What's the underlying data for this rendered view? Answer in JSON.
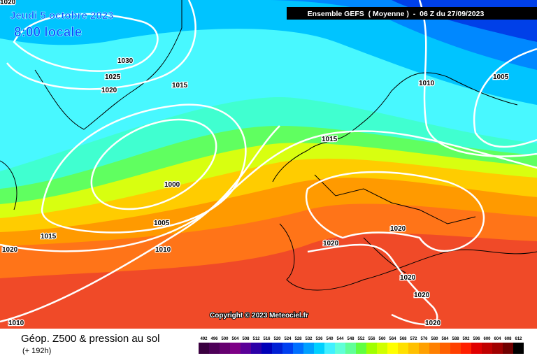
{
  "map": {
    "date": "Jeudi 5 octobre 2023",
    "time": "8:00 locale",
    "header": "Ensemble GEFS  ( Moyenne )  -  06 Z du 27/09/2023",
    "copyright": "Copyright © 2023 Meteociel.fr",
    "isobar_labels": [
      "1020",
      "1030",
      "1025",
      "1020",
      "1015",
      "1010",
      "1005",
      "1015",
      "1000",
      "1005",
      "1015",
      "1020",
      "1010",
      "1020",
      "1020",
      "1020",
      "1020",
      "1020",
      "1010"
    ]
  },
  "legend": {
    "title": "Géop. Z500 & pression au sol",
    "subtitle": "(+ 192h)",
    "scale": [
      492,
      496,
      500,
      504,
      508,
      512,
      516,
      520,
      524,
      528,
      532,
      536,
      540,
      544,
      548,
      552,
      556,
      560,
      564,
      568,
      572,
      576,
      580,
      584,
      588,
      592,
      596,
      600,
      604,
      608,
      612
    ],
    "colors": [
      "#3a0040",
      "#4e0058",
      "#660070",
      "#7e0086",
      "#5a0098",
      "#2c00a8",
      "#0000b8",
      "#0020d4",
      "#0040f0",
      "#0070ff",
      "#00a0ff",
      "#00d0ff",
      "#40f0ff",
      "#60ffd8",
      "#60ff98",
      "#60ff40",
      "#a0ff00",
      "#d0ff00",
      "#ffff00",
      "#ffe000",
      "#ffc000",
      "#ffa000",
      "#ff8000",
      "#ff6000",
      "#ff4000",
      "#ff2000",
      "#e00000",
      "#c00000",
      "#a00000",
      "#700000",
      "#000000"
    ]
  }
}
